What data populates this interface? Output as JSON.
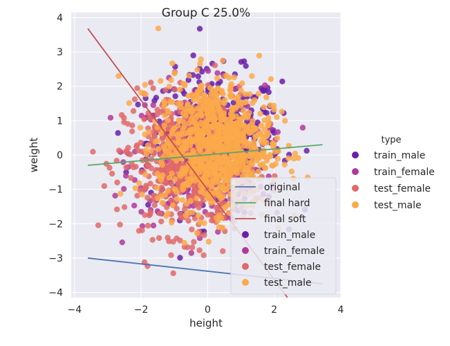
{
  "chart_data": {
    "type": "scatter",
    "title": "Group C 25.0%",
    "xlabel": "height",
    "ylabel": "weight",
    "xlim": [
      -4.1,
      4.0
    ],
    "ylim": [
      -4.15,
      4.15
    ],
    "xticks": [
      "−4",
      "−2",
      "0",
      "2",
      "4"
    ],
    "xtick_values": [
      -4,
      -2,
      0,
      2,
      4
    ],
    "yticks": [
      "−4",
      "−3",
      "−2",
      "−1",
      "0",
      "1",
      "2",
      "3",
      "4"
    ],
    "ytick_values": [
      -4,
      -3,
      -2,
      -1,
      0,
      1,
      2,
      3,
      4
    ],
    "grid": true,
    "lines": [
      {
        "name": "original",
        "color": "#4c72b0",
        "x": [
          -3.6,
          3.45
        ],
        "y": [
          -3.0,
          -3.75
        ]
      },
      {
        "name": "final hard",
        "color": "#55a868",
        "x": [
          -3.6,
          3.45
        ],
        "y": [
          -0.3,
          0.3
        ]
      },
      {
        "name": "final soft",
        "color": "#c44e52",
        "x": [
          -3.6,
          2.4
        ],
        "y": [
          3.68,
          -4.15
        ]
      }
    ],
    "series": [
      {
        "name": "train_male",
        "color": "#6a1fa8",
        "center": [
          0.2,
          0.4
        ],
        "spread": [
          1.0,
          1.0
        ],
        "count": 420,
        "range": [
          -3.2,
          3.5
        ]
      },
      {
        "name": "train_female",
        "color": "#b03a9a",
        "center": [
          -0.3,
          0.0
        ],
        "spread": [
          1.0,
          1.0
        ],
        "count": 300,
        "range": [
          -3.0,
          3.0
        ]
      },
      {
        "name": "test_female",
        "color": "#e06a6a",
        "center": [
          -0.6,
          -0.3
        ],
        "spread": [
          0.95,
          1.0
        ],
        "count": 600,
        "range": [
          -3.6,
          3.0
        ]
      },
      {
        "name": "test_male",
        "color": "#fba94a",
        "center": [
          0.2,
          0.3
        ],
        "spread": [
          0.85,
          0.95
        ],
        "count": 900,
        "range": [
          -3.0,
          3.5
        ]
      }
    ],
    "legend_inner": {
      "placement": "lower-right",
      "entries": [
        "original",
        "final hard",
        "final soft",
        "train_male",
        "train_female",
        "test_female",
        "test_male"
      ]
    },
    "legend_outer": {
      "placement": "right",
      "title": "type",
      "entries": [
        "train_male",
        "train_female",
        "test_female",
        "test_male"
      ]
    }
  }
}
